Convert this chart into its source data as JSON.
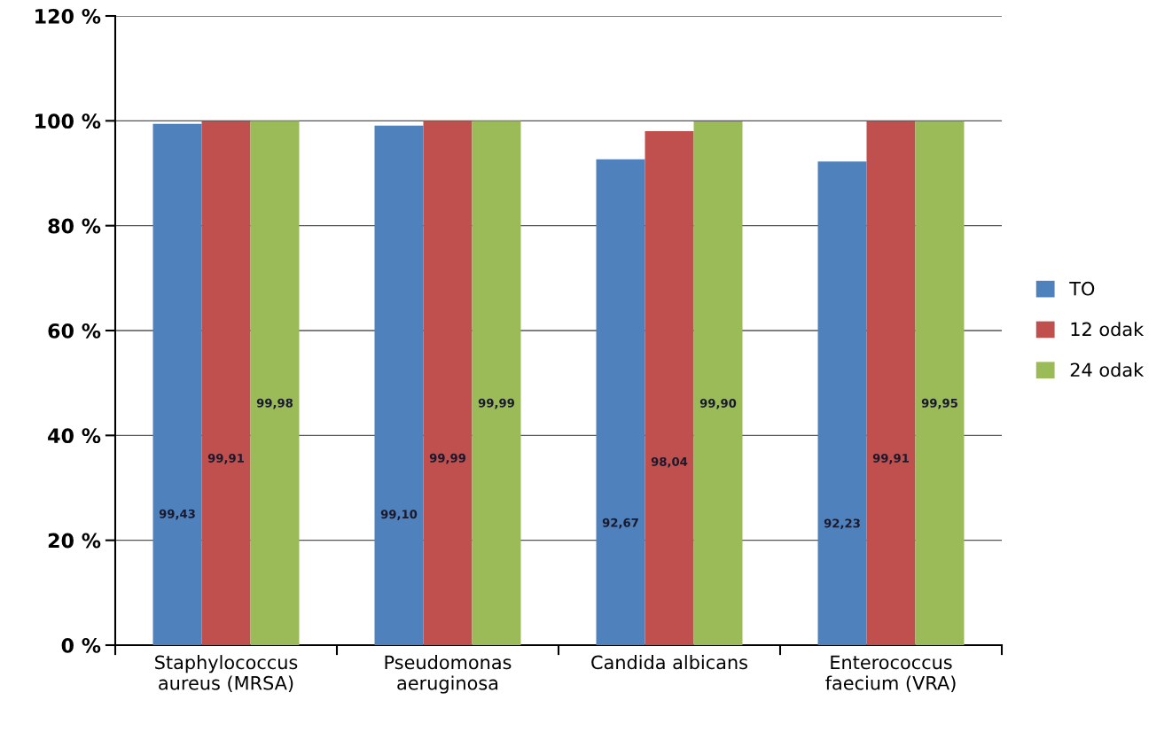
{
  "chart_data": {
    "type": "bar",
    "categories": [
      "Staphylococcus\naureus (MRSA)",
      "Pseudomonas\naeruginosa",
      "Candida albicans",
      "Enterococcus\nfaecium (VRA)"
    ],
    "series": [
      {
        "name": "TO",
        "color": "#4f81bd",
        "values": [
          99.43,
          99.1,
          92.67,
          92.23
        ],
        "value_labels": [
          "99,43",
          "99,10",
          "92,67",
          "92,23"
        ]
      },
      {
        "name": "12 odak",
        "color": "#c0504d",
        "values": [
          99.91,
          99.99,
          98.04,
          99.91
        ],
        "value_labels": [
          "99,91",
          "99,99",
          "98,04",
          "99,91"
        ]
      },
      {
        "name": "24 odak",
        "color": "#9bbb59",
        "values": [
          99.98,
          99.99,
          99.9,
          99.95
        ],
        "value_labels": [
          "99,98",
          "99,99",
          "99,90",
          "99,95"
        ]
      }
    ],
    "ylim": [
      0,
      120
    ],
    "yticks": [
      {
        "value": 0,
        "label": "0 %"
      },
      {
        "value": 20,
        "label": "20 %"
      },
      {
        "value": 40,
        "label": "40 %"
      },
      {
        "value": 60,
        "label": "60 %"
      },
      {
        "value": 80,
        "label": "80 %"
      },
      {
        "value": 100,
        "label": "100 %"
      },
      {
        "value": 120,
        "label": "120 %"
      }
    ],
    "grid": "y",
    "legend": "right"
  }
}
